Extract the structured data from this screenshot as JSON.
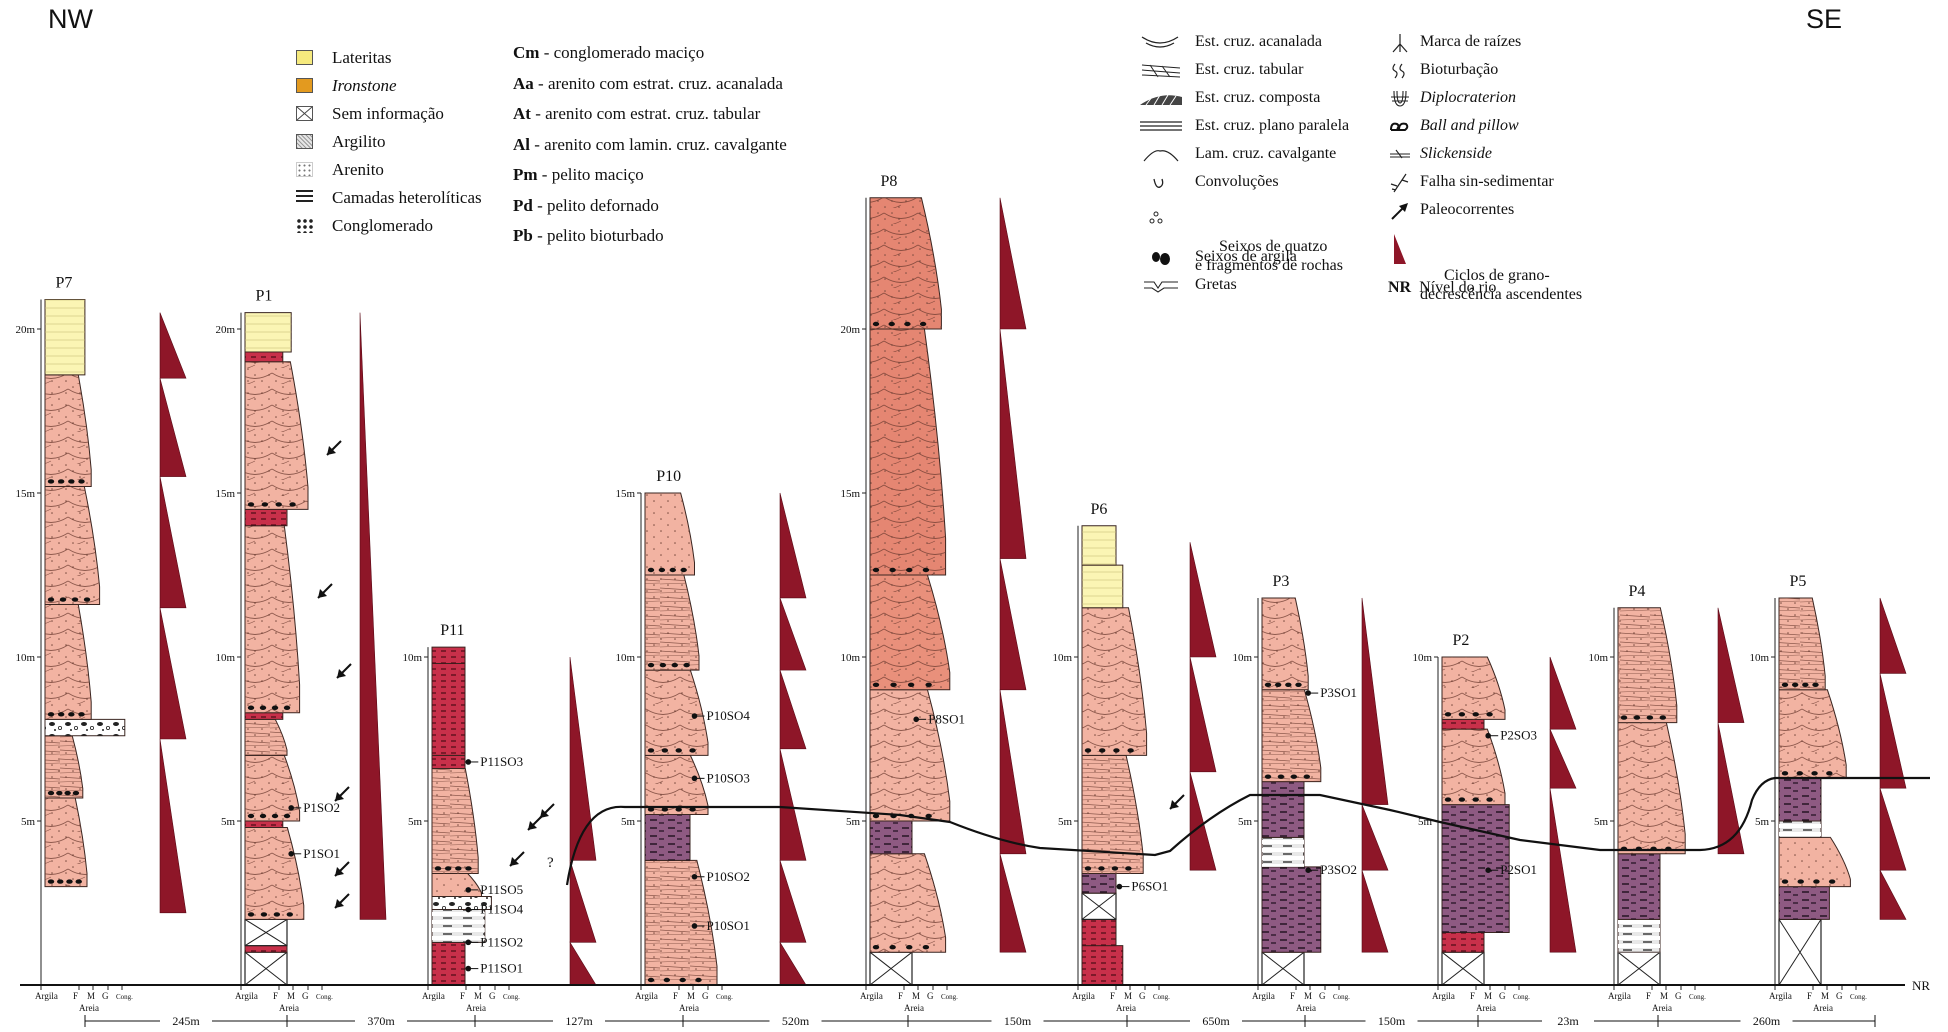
{
  "corners": {
    "left": "NW",
    "right": "SE"
  },
  "legend_lithology": [
    {
      "label": "Lateritas",
      "italic": false,
      "swatch": "laterite"
    },
    {
      "label": "Ironstone",
      "italic": true,
      "swatch": "ironstone"
    },
    {
      "label": "Sem informação",
      "italic": false,
      "swatch": "noinfo"
    },
    {
      "label": "Argilito",
      "italic": false,
      "swatch": "argilito"
    },
    {
      "label": "Arenito",
      "italic": false,
      "swatch": "arenito"
    },
    {
      "label": "Camadas heterolíticas",
      "italic": false,
      "swatch": "hetero"
    },
    {
      "label": "Conglomerado",
      "italic": false,
      "swatch": "conglom"
    }
  ],
  "legend_facies": [
    {
      "code": "Cm",
      "desc": " - conglomerado maciço"
    },
    {
      "code": "Aa",
      "desc": " - arenito com estrat. cruz. acanalada"
    },
    {
      "code": "At",
      "desc": " - arenito com estrat. cruz. tabular"
    },
    {
      "code": "Al",
      "desc": " - arenito com lamin. cruz. cavalgante"
    },
    {
      "code": "Pm",
      "desc": " - pelito maciço"
    },
    {
      "code": "Pd",
      "desc": " - pelito defornado"
    },
    {
      "code": "Pb",
      "desc": " - pelito bioturbado"
    }
  ],
  "legend_structures": [
    {
      "label": "Est. cruz. acanalada",
      "icon": "trough"
    },
    {
      "label": "Est. cruz. tabular",
      "icon": "tabular"
    },
    {
      "label": "Est. cruz. composta",
      "icon": "compound"
    },
    {
      "label": "Est. cruz. plano paralela",
      "icon": "planar"
    },
    {
      "label": "Lam. cruz. cavalgante",
      "icon": "climbing"
    },
    {
      "label": "Convoluções",
      "icon": "convolute"
    },
    {
      "label": "Seixos de quatzo\ne fragmentos de rochas",
      "icon": "pebbles"
    },
    {
      "label": "Seixos de argila",
      "icon": "clay-pebbles"
    },
    {
      "label": "Gretas",
      "icon": "cracks"
    }
  ],
  "legend_other": [
    {
      "label": "Marca de raízes",
      "italic": false,
      "icon": "roots"
    },
    {
      "label": "Bioturbação",
      "italic": false,
      "icon": "bioturbation"
    },
    {
      "label": "Diplocraterion",
      "italic": true,
      "icon": "diplocraterion"
    },
    {
      "label": "Ball and pillow",
      "italic": true,
      "icon": "ball-pillow"
    },
    {
      "label": "Slickenside",
      "italic": true,
      "icon": "slickenside"
    },
    {
      "label": "Falha sin-sedimentar",
      "italic": false,
      "icon": "fault"
    },
    {
      "label": "Paleocorrentes",
      "italic": false,
      "icon": "paleocurrent"
    },
    {
      "label": "Ciclos de grano-\ndecrescência ascendentes",
      "italic": false,
      "icon": "fining-cycle"
    },
    {
      "label": "Nível do rio",
      "italic": false,
      "code": "NR",
      "icon": "river-level"
    }
  ],
  "colors": {
    "sandstone": "#f2b3a2",
    "sandstone_dark": "#e9907b",
    "sandstone_p8": "#e58672",
    "laterite": "#fbf5b4",
    "mudstone": "#8e5a82",
    "red_mud": "#c8304a",
    "cycle": "#8e1628",
    "ironstone": "#e0a020"
  },
  "axis_labels": {
    "argila": "Argila",
    "f": "F",
    "m": "M",
    "g": "G",
    "cong": "Cong.",
    "areia": "Areia",
    "river": "NR"
  },
  "profiles": [
    {
      "name": "P7",
      "ticks": [
        "5m",
        "10m",
        "15m",
        "20m"
      ],
      "top_m": 20.9,
      "samples": []
    },
    {
      "name": "P1",
      "ticks": [
        "5m",
        "10m",
        "15m",
        "20m"
      ],
      "top_m": 20.5,
      "samples": [
        "P1SO2",
        "P1SO1"
      ]
    },
    {
      "name": "P11",
      "ticks": [
        "5m",
        "10m"
      ],
      "top_m": 10.3,
      "samples": [
        "P11SO3",
        "P11SO5",
        "P11SO4",
        "P11SO2",
        "P11SO1"
      ],
      "query": "?"
    },
    {
      "name": "P10",
      "ticks": [
        "5m",
        "10m",
        "15m"
      ],
      "top_m": 15.0,
      "samples": [
        "P10SO4",
        "P10SO3",
        "P10SO2",
        "P10SO1"
      ]
    },
    {
      "name": "P8",
      "ticks": [
        "5m",
        "10m",
        "15m",
        "20m"
      ],
      "top_m": 24.0,
      "samples": [
        "P8SO1"
      ]
    },
    {
      "name": "P6",
      "ticks": [
        "5m",
        "10m"
      ],
      "top_m": 14.0,
      "samples": [
        "P6SO1"
      ]
    },
    {
      "name": "P3",
      "ticks": [
        "5m",
        "10m"
      ],
      "top_m": 11.8,
      "samples": [
        "P3SO1",
        "P3SO2"
      ]
    },
    {
      "name": "P2",
      "ticks": [
        "5m",
        "10m"
      ],
      "top_m": 10.0,
      "samples": [
        "P2SO3",
        "P2SO1"
      ]
    },
    {
      "name": "P4",
      "ticks": [
        "5m",
        "10m"
      ],
      "top_m": 11.5,
      "samples": []
    },
    {
      "name": "P5",
      "ticks": [
        "5m",
        "10m"
      ],
      "top_m": 11.8,
      "samples": []
    }
  ],
  "distances": [
    "245m",
    "370m",
    "127m",
    "520m",
    "150m",
    "650m",
    "150m",
    "23m",
    "260m"
  ]
}
